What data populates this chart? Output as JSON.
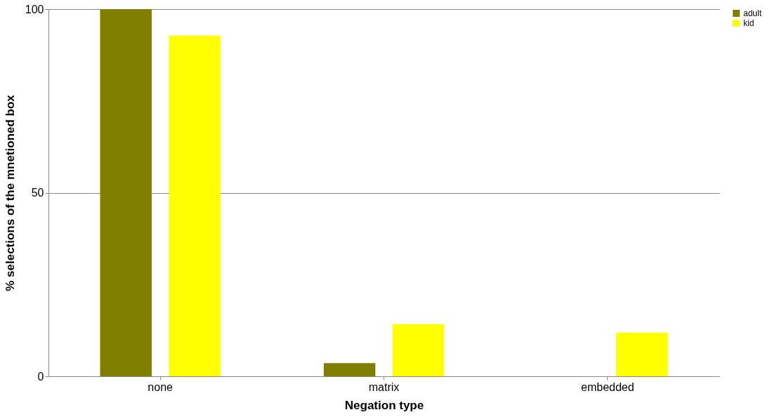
{
  "chart_data": {
    "type": "bar",
    "xlabel": "Negation type",
    "ylabel": "% selections of the mnetioned box",
    "categories": [
      "none",
      "matrix",
      "embedded"
    ],
    "series": [
      {
        "name": "adult",
        "color": "#807f00",
        "values": [
          100,
          3.6,
          0
        ]
      },
      {
        "name": "kid",
        "color": "#ffff00",
        "values": [
          92.8,
          14.2,
          11.9
        ]
      }
    ],
    "ylim": [
      0,
      100
    ],
    "yticks": [
      0,
      50,
      100
    ],
    "grid": "y",
    "legend": "right"
  }
}
